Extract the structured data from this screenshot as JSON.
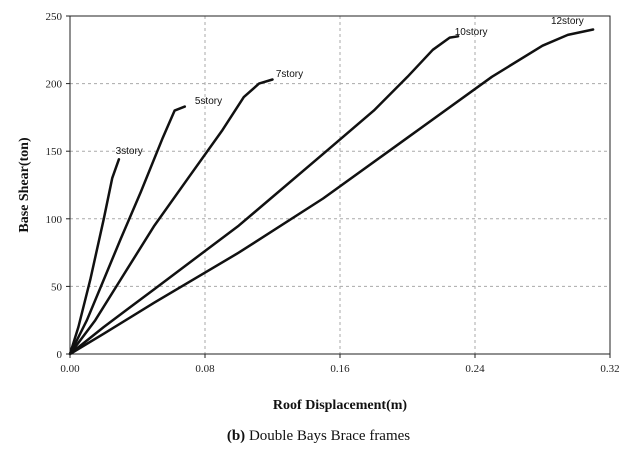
{
  "caption": {
    "prefix": "(b)",
    "text": " Double Bays Brace frames"
  },
  "chart_data": {
    "type": "line",
    "title": "",
    "xlabel": "Roof Displacement(m)",
    "ylabel": "Base Shear(ton)",
    "xlim": [
      0,
      0.32
    ],
    "ylim": [
      0,
      250
    ],
    "x_ticks": [
      "0.00",
      "0.08",
      "0.16",
      "0.24",
      "0.32"
    ],
    "y_ticks": [
      "0",
      "50",
      "100",
      "150",
      "200",
      "250"
    ],
    "grid": true,
    "series": [
      {
        "name": "3story",
        "points": [
          [
            0,
            0
          ],
          [
            0.005,
            20
          ],
          [
            0.012,
            55
          ],
          [
            0.02,
            100
          ],
          [
            0.025,
            130
          ],
          [
            0.029,
            144
          ]
        ]
      },
      {
        "name": "5story",
        "points": [
          [
            0,
            0
          ],
          [
            0.01,
            25
          ],
          [
            0.02,
            55
          ],
          [
            0.03,
            85
          ],
          [
            0.042,
            120
          ],
          [
            0.055,
            160
          ],
          [
            0.062,
            180
          ],
          [
            0.068,
            183
          ]
        ]
      },
      {
        "name": "7story",
        "points": [
          [
            0,
            0
          ],
          [
            0.015,
            25
          ],
          [
            0.03,
            55
          ],
          [
            0.05,
            95
          ],
          [
            0.07,
            130
          ],
          [
            0.09,
            165
          ],
          [
            0.103,
            190
          ],
          [
            0.112,
            200
          ],
          [
            0.12,
            203
          ]
        ]
      },
      {
        "name": "10story",
        "points": [
          [
            0,
            0
          ],
          [
            0.02,
            20
          ],
          [
            0.05,
            48
          ],
          [
            0.1,
            95
          ],
          [
            0.15,
            148
          ],
          [
            0.18,
            180
          ],
          [
            0.2,
            205
          ],
          [
            0.215,
            225
          ],
          [
            0.225,
            234
          ],
          [
            0.23,
            235
          ]
        ]
      },
      {
        "name": "12story",
        "points": [
          [
            0,
            0
          ],
          [
            0.02,
            15
          ],
          [
            0.05,
            38
          ],
          [
            0.1,
            75
          ],
          [
            0.15,
            115
          ],
          [
            0.2,
            160
          ],
          [
            0.25,
            205
          ],
          [
            0.28,
            228
          ],
          [
            0.295,
            236
          ],
          [
            0.31,
            240
          ]
        ]
      }
    ],
    "annotations": [
      {
        "text": "3story",
        "x": 0.027,
        "y": 148
      },
      {
        "text": "5story",
        "x": 0.074,
        "y": 185
      },
      {
        "text": "7story",
        "x": 0.122,
        "y": 205
      },
      {
        "text": "10story",
        "x": 0.228,
        "y": 236
      },
      {
        "text": "12story",
        "x": 0.285,
        "y": 244
      }
    ]
  }
}
